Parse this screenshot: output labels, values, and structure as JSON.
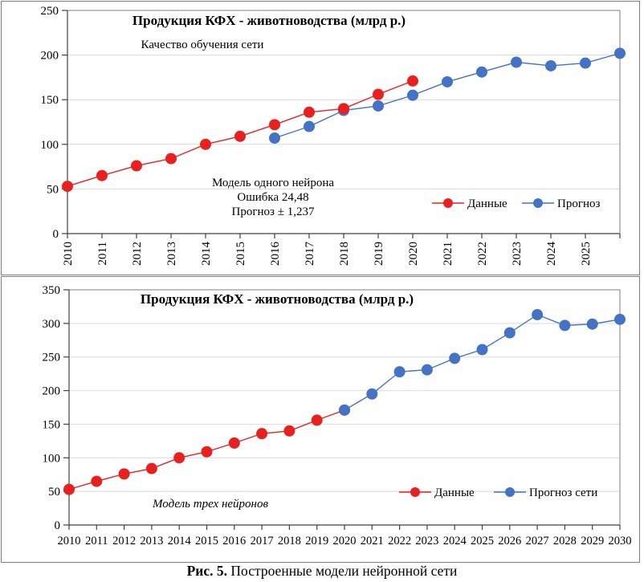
{
  "caption": {
    "bold": "Рис. 5.",
    "text": " Построенные модели нейронной сети"
  },
  "colors": {
    "data_red": "#e8201e",
    "forecast_blue": "#4472c4",
    "gridline": "#d9d9d9",
    "axis": "#404040",
    "plot_border": "#7f7f7f",
    "tick": "#404040"
  },
  "chart_data": [
    {
      "type": "line",
      "title": "Продукция КФХ - животноводства (млрд р.)",
      "subtitle": "Качество обучения сети",
      "annotation": [
        "Модель одного нейрона",
        "Ошибка 24,48",
        "Прогноз ± 1,237"
      ],
      "ylabel": "",
      "xlabel": "",
      "ylim": [
        0,
        250
      ],
      "ytick_step": 50,
      "x_start": 2010,
      "x_end": 2026,
      "x_label_start": 2010,
      "x_label_end": 2025,
      "x_labels_rotated": true,
      "legend_position": "inside-lower-right",
      "grid": true,
      "series": [
        {
          "name": "Данные",
          "color": "#e8201e",
          "start_year": 2010,
          "values": [
            53,
            65,
            76,
            84,
            100,
            109,
            122,
            136,
            140,
            156,
            171
          ]
        },
        {
          "name": "Прогноз",
          "color": "#4472c4",
          "start_year": 2016,
          "values": [
            107,
            120,
            138,
            143,
            155,
            170,
            181,
            192,
            188,
            191,
            202
          ]
        }
      ]
    },
    {
      "type": "line",
      "title": "Продукция КФХ - животноводства (млрд р.)",
      "subtitle": "",
      "annotation": [
        "Модель трех нейронов"
      ],
      "ylabel": "",
      "xlabel": "",
      "ylim": [
        0,
        350
      ],
      "ytick_step": 50,
      "x_start": 2010,
      "x_end": 2030,
      "x_label_start": 2010,
      "x_label_end": 2030,
      "x_labels_rotated": false,
      "legend_position": "inside-lower-right",
      "grid": true,
      "series": [
        {
          "name": "Данные",
          "color": "#e8201e",
          "start_year": 2010,
          "values": [
            53,
            65,
            76,
            84,
            100,
            109,
            122,
            136,
            140,
            156,
            171
          ]
        },
        {
          "name": "Прогноз сети",
          "color": "#4472c4",
          "start_year": 2020,
          "values": [
            171,
            195,
            228,
            231,
            248,
            261,
            286,
            313,
            297,
            299,
            306
          ]
        }
      ]
    }
  ]
}
